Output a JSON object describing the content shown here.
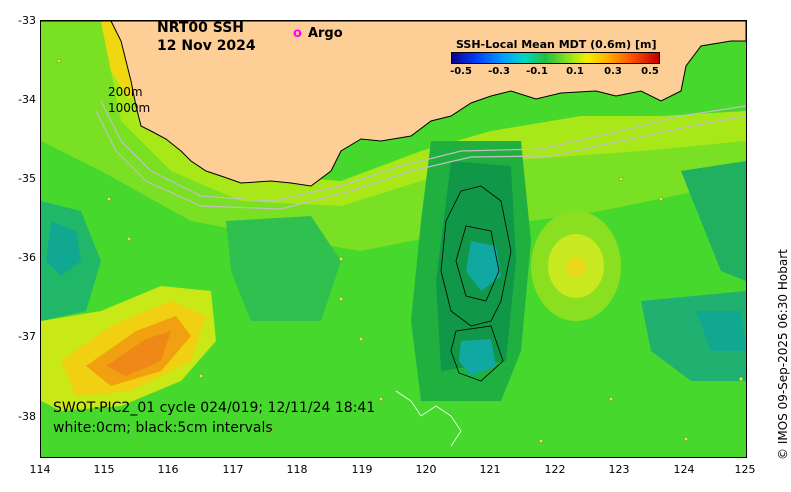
{
  "header": {
    "title": "NRT00 SSH",
    "date": "12 Nov 2024",
    "argo_label": "Argo",
    "argo_marker_color": "#ff00ff"
  },
  "colorbar": {
    "title": "SSH-Local Mean MDT (0.6m) [m]",
    "ticks": [
      "-0.5",
      "-0.3",
      "-0.1",
      "0.1",
      "0.3",
      "0.5"
    ]
  },
  "axes": {
    "y_ticks": [
      "-33",
      "-34",
      "-35",
      "-36",
      "-37",
      "-38"
    ],
    "x_ticks": [
      "114",
      "115",
      "116",
      "117",
      "118",
      "119",
      "120",
      "121",
      "122",
      "123",
      "124",
      "125"
    ]
  },
  "depth_contours": [
    "200m",
    "1000m"
  ],
  "swot": {
    "line1": "SWOT-PIC2_01 cycle 024/019; 12/11/24 18:41",
    "line2": "white:0cm; black:5cm intervals"
  },
  "credit": "© IMOS 09-Sep-2025 06:30 Hobart",
  "colors": {
    "land": "#fdcf97",
    "ocean_base": "#46d82c"
  }
}
